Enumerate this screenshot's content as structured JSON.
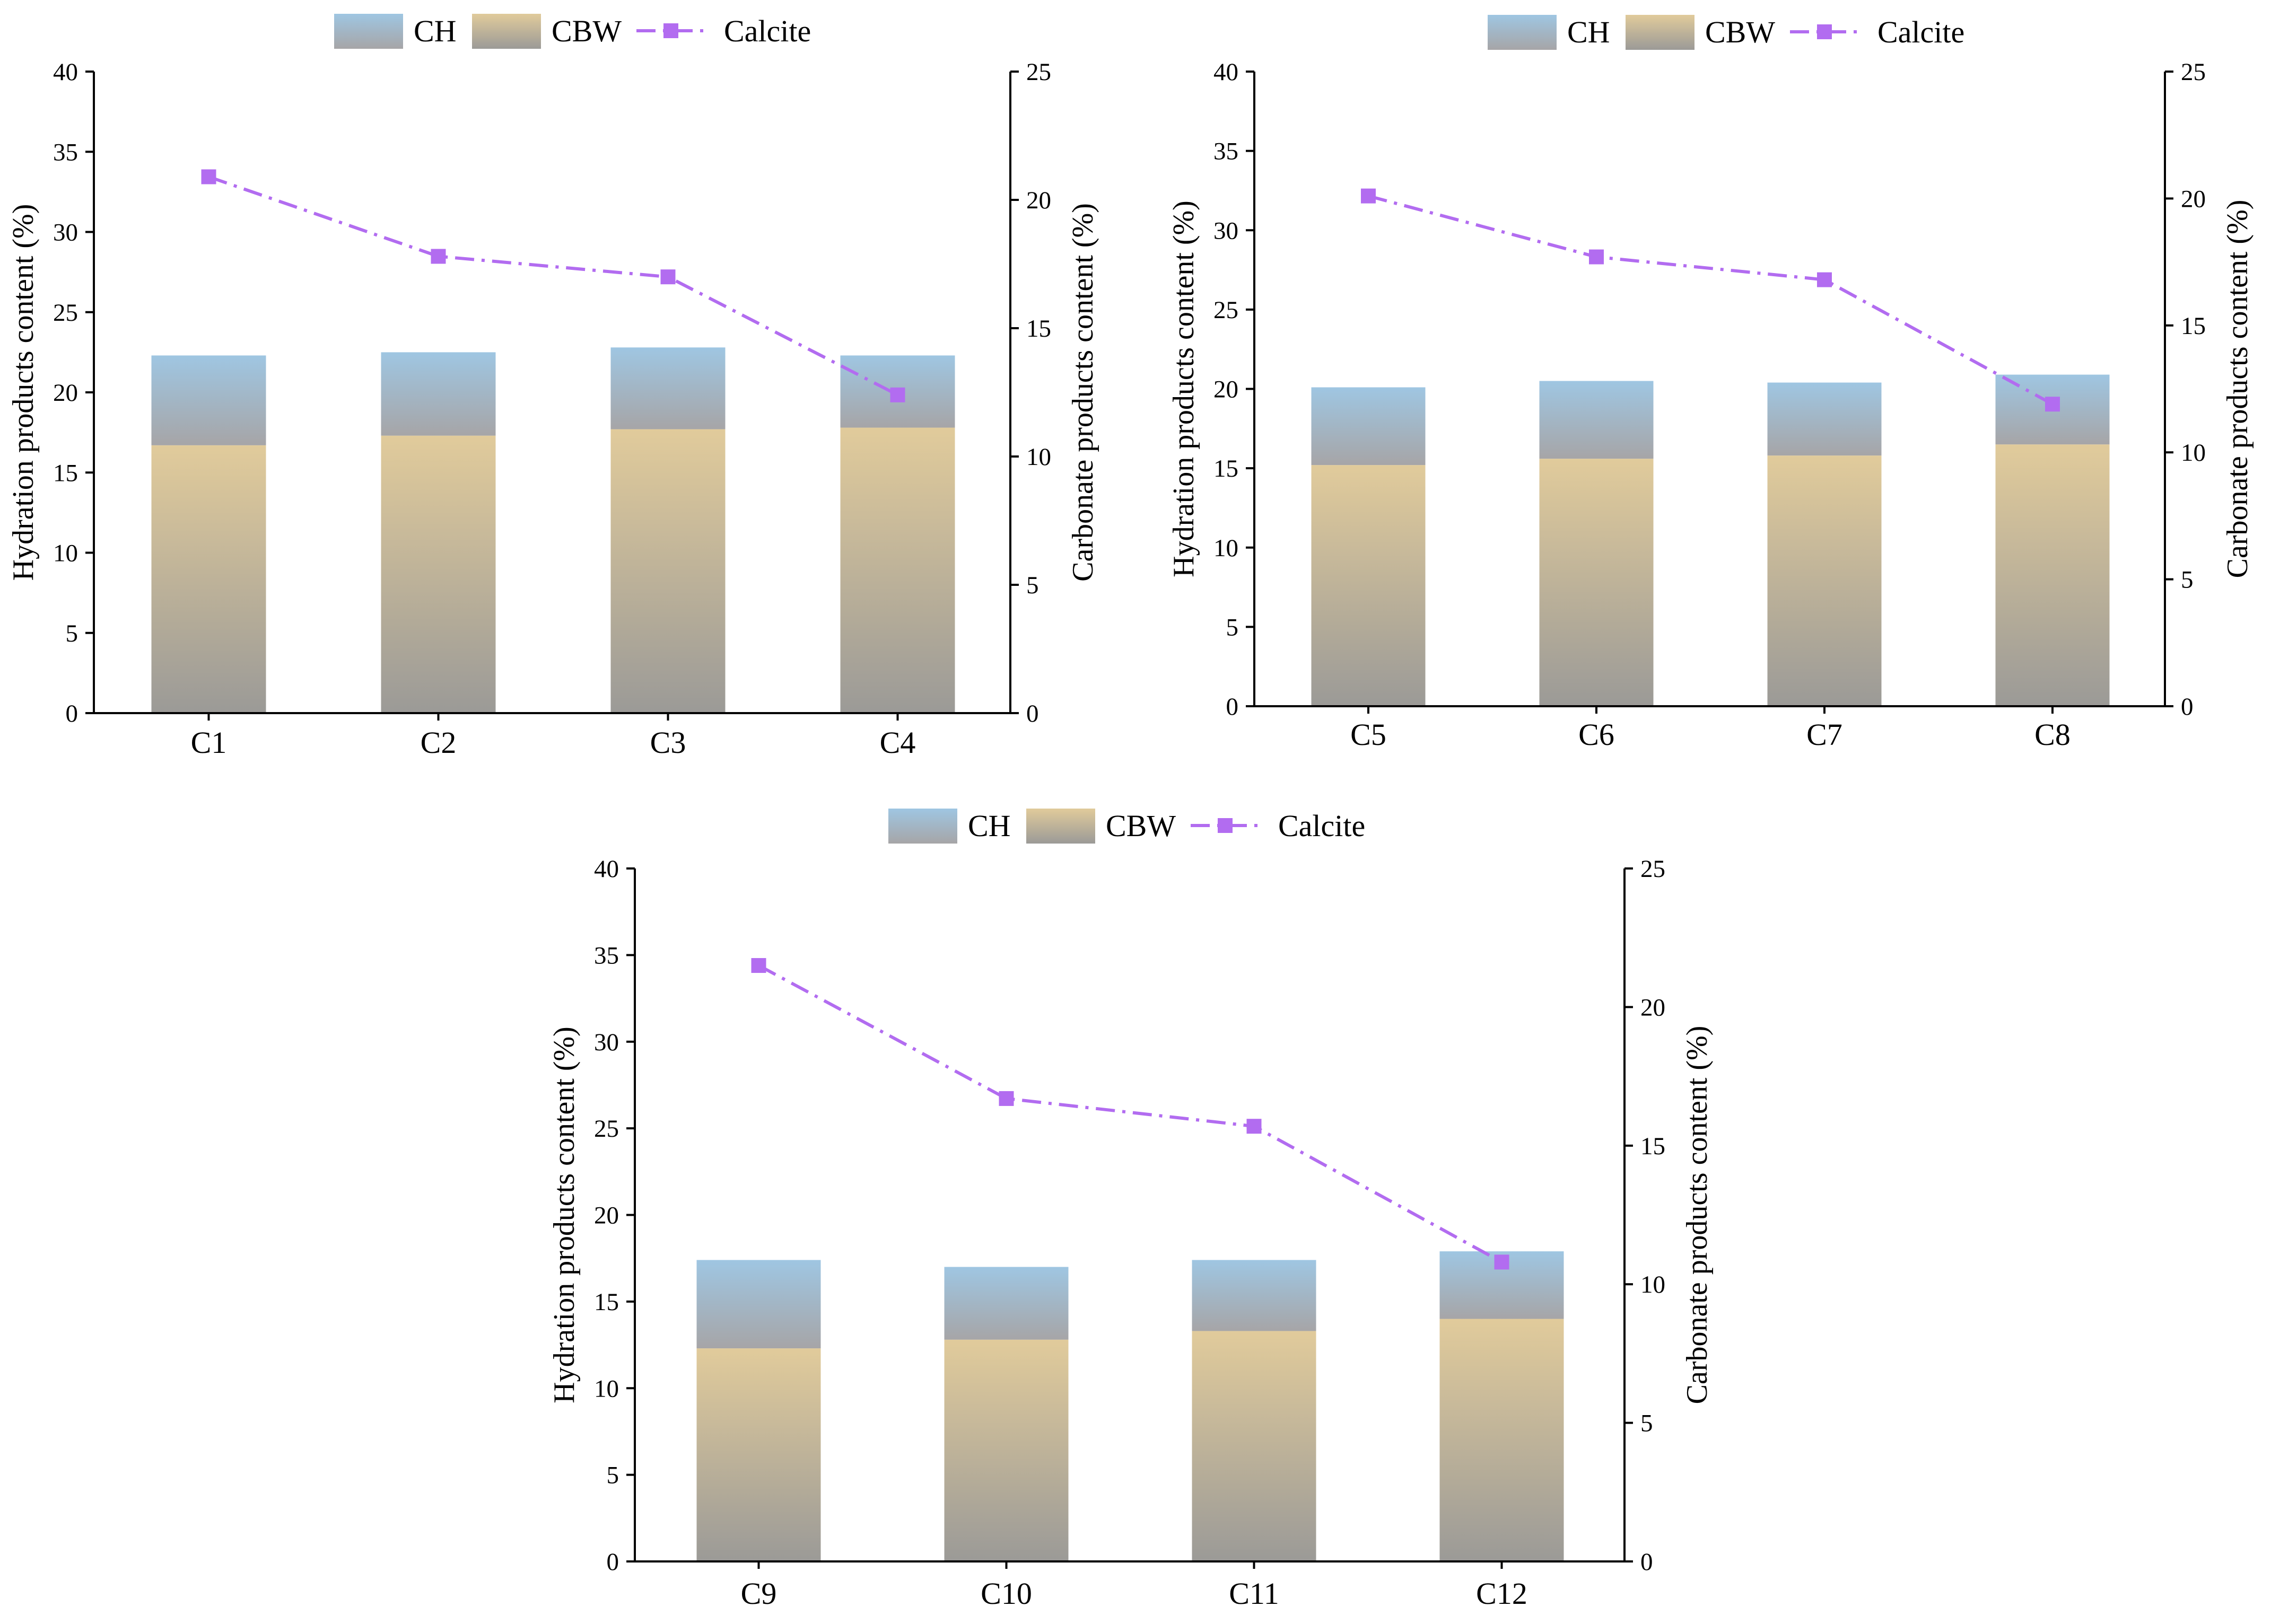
{
  "chart_data": [
    {
      "type": "bar",
      "stacked": true,
      "secondary_line": true,
      "categories": [
        "C1",
        "C2",
        "C3",
        "C4"
      ],
      "series": [
        {
          "name": "CBW",
          "axis": "left",
          "values": [
            16.7,
            17.3,
            17.7,
            17.8
          ]
        },
        {
          "name": "CH",
          "axis": "left",
          "values": [
            5.6,
            5.2,
            5.1,
            4.5
          ]
        },
        {
          "name": "Calcite",
          "axis": "right",
          "kind": "line",
          "values": [
            20.9,
            17.8,
            17.0,
            12.4
          ]
        }
      ],
      "ylabel": "Hydration products content (%)",
      "y2label": "Carbonate products content (%)",
      "ylim": [
        0,
        40
      ],
      "y2lim": [
        0,
        25
      ],
      "yticks": [
        "0",
        "5",
        "10",
        "15",
        "20",
        "25",
        "30",
        "35",
        "40"
      ],
      "y2ticks": [
        "0",
        "5",
        "10",
        "15",
        "20",
        "25"
      ],
      "legend": [
        "CH",
        "CBW",
        "Calcite"
      ],
      "legend_position": "top"
    },
    {
      "type": "bar",
      "stacked": true,
      "secondary_line": true,
      "categories": [
        "C5",
        "C6",
        "C7",
        "C8"
      ],
      "series": [
        {
          "name": "CBW",
          "axis": "left",
          "values": [
            15.2,
            15.6,
            15.8,
            16.5
          ]
        },
        {
          "name": "CH",
          "axis": "left",
          "values": [
            4.9,
            4.9,
            4.6,
            4.4
          ]
        },
        {
          "name": "Calcite",
          "axis": "right",
          "kind": "line",
          "values": [
            20.1,
            17.7,
            16.8,
            11.9
          ]
        }
      ],
      "ylabel": "Hydration products content (%)",
      "y2label": "Carbonate products content (%)",
      "ylim": [
        0,
        40
      ],
      "y2lim": [
        0,
        25
      ],
      "yticks": [
        "0",
        "5",
        "10",
        "15",
        "20",
        "25",
        "30",
        "35",
        "40"
      ],
      "y2ticks": [
        "0",
        "5",
        "10",
        "15",
        "20",
        "25"
      ],
      "legend": [
        "CH",
        "CBW",
        "Calcite"
      ],
      "legend_position": "top"
    },
    {
      "type": "bar",
      "stacked": true,
      "secondary_line": true,
      "categories": [
        "C9",
        "C10",
        "C11",
        "C12"
      ],
      "series": [
        {
          "name": "CBW",
          "axis": "left",
          "values": [
            12.3,
            12.8,
            13.3,
            14.0
          ]
        },
        {
          "name": "CH",
          "axis": "left",
          "values": [
            5.1,
            4.2,
            4.1,
            3.9
          ]
        },
        {
          "name": "Calcite",
          "axis": "right",
          "kind": "line",
          "values": [
            21.5,
            16.7,
            15.7,
            10.8
          ]
        }
      ],
      "ylabel": "Hydration products content (%)",
      "y2label": "Carbonate products content (%)",
      "ylim": [
        0,
        40
      ],
      "y2lim": [
        0,
        25
      ],
      "yticks": [
        "0",
        "5",
        "10",
        "15",
        "20",
        "25",
        "30",
        "35",
        "40"
      ],
      "y2ticks": [
        "0",
        "5",
        "10",
        "15",
        "20",
        "25"
      ],
      "legend": [
        "CH",
        "CBW",
        "Calcite"
      ],
      "legend_position": "top"
    }
  ],
  "colors": {
    "ch_top": "#9fc6e2",
    "ch_bottom": "#a6a5a7",
    "cbw_top": "#e1cb9b",
    "cbw_bottom": "#9b9a97",
    "calcite": "#b26cf0"
  }
}
